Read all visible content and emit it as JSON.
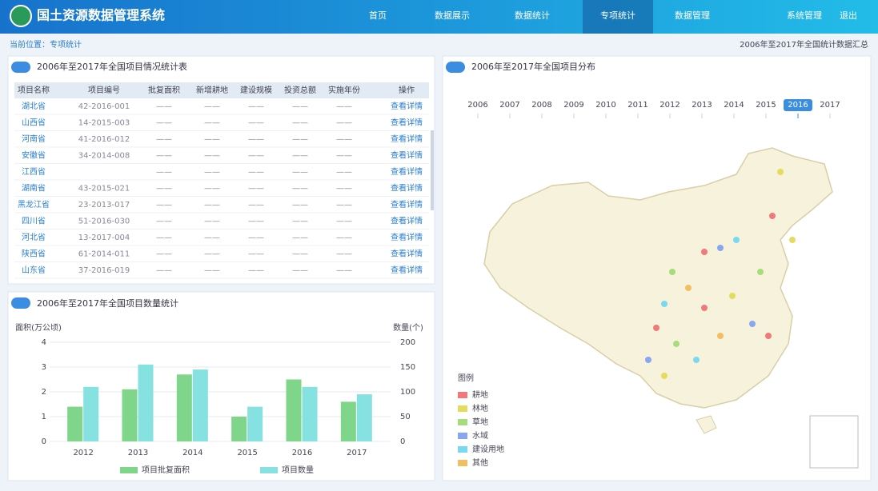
{
  "header": {
    "title": "国土资源数据管理系统",
    "nav": [
      "首页",
      "数据展示",
      "数据统计",
      "专项统计",
      "数据管理",
      "系统管理",
      "退出"
    ]
  },
  "breadcrumb": "当前位置：专项统计",
  "top_right": "2006年至2017年全国统计数据汇总",
  "table_panel": {
    "title": "2006年至2017年全国项目情况统计表",
    "columns": [
      "项目名称",
      "项目编号",
      "批复面积",
      "新增耕地",
      "建设规模",
      "投资总额",
      "实施年份",
      "操作"
    ],
    "rows": [
      [
        "湖北省",
        "42-2016-001",
        "——",
        "——",
        "——",
        "——",
        "——",
        "查看详情"
      ],
      [
        "山西省",
        "14-2015-003",
        "——",
        "——",
        "——",
        "——",
        "——",
        "查看详情"
      ],
      [
        "河南省",
        "41-2016-012",
        "——",
        "——",
        "——",
        "——",
        "——",
        "查看详情"
      ],
      [
        "安徽省",
        "34-2014-008",
        "——",
        "——",
        "——",
        "——",
        "——",
        "查看详情"
      ],
      [
        "江西省",
        "",
        "——",
        "——",
        "——",
        "——",
        "——",
        "查看详情"
      ],
      [
        "湖南省",
        "43-2015-021",
        "——",
        "——",
        "——",
        "——",
        "——",
        "查看详情"
      ],
      [
        "黑龙江省",
        "23-2013-017",
        "——",
        "——",
        "——",
        "——",
        "——",
        "查看详情"
      ],
      [
        "四川省",
        "51-2016-030",
        "——",
        "——",
        "——",
        "——",
        "——",
        "查看详情"
      ],
      [
        "河北省",
        "13-2017-004",
        "——",
        "——",
        "——",
        "——",
        "——",
        "查看详情"
      ],
      [
        "陕西省",
        "61-2014-011",
        "——",
        "——",
        "——",
        "——",
        "——",
        "查看详情"
      ],
      [
        "山东省",
        "37-2016-019",
        "——",
        "——",
        "——",
        "——",
        "——",
        "查看详情"
      ]
    ]
  },
  "chart_data": {
    "type": "bar",
    "title": "2006年至2017年全国项目数量统计",
    "y_label": "面积(万公顷)",
    "y2_label": "数量(个)",
    "categories": [
      "2012",
      "2013",
      "2014",
      "2015",
      "2016",
      "2017"
    ],
    "series": [
      {
        "name": "项目批复面积",
        "color": "#7fd68a",
        "values": [
          1.4,
          2.1,
          2.7,
          1.0,
          2.5,
          1.6
        ]
      },
      {
        "name": "项目数量",
        "color": "#86e2e0",
        "axis": "y2",
        "values": [
          110,
          155,
          145,
          70,
          110,
          95
        ]
      }
    ],
    "ylim": [
      0,
      4
    ],
    "yticks": [
      0,
      1,
      2,
      3,
      4
    ],
    "y2lim": [
      0,
      200
    ],
    "y2ticks": [
      0,
      50,
      100,
      150,
      200
    ],
    "grid": true
  },
  "map_panel": {
    "title": "2006年至2017年全国项目分布",
    "years": [
      "2006",
      "2007",
      "2008",
      "2009",
      "2010",
      "2011",
      "2012",
      "2013",
      "2014",
      "2015",
      "2016",
      "2017"
    ],
    "legend_title": "图例",
    "legend": [
      {
        "name": "耕地",
        "color": "#f07a7a"
      },
      {
        "name": "林地",
        "color": "#e4dc5c"
      },
      {
        "name": "草地",
        "color": "#a6dc7c"
      },
      {
        "name": "水域",
        "color": "#8aa6f0"
      },
      {
        "name": "建设用地",
        "color": "#7ad8f0"
      },
      {
        "name": "其他",
        "color": "#f0c060"
      }
    ]
  }
}
